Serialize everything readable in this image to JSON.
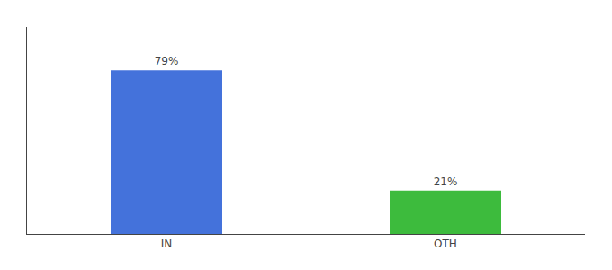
{
  "chart_data": {
    "type": "bar",
    "categories": [
      "IN",
      "OTH"
    ],
    "values": [
      79,
      21
    ],
    "value_labels": [
      "79%",
      "21%"
    ],
    "colors": [
      "#4472db",
      "#3dbb3d"
    ],
    "ylim": [
      0,
      100
    ],
    "data_labels": true,
    "tick_labels": "x",
    "grid": false
  }
}
